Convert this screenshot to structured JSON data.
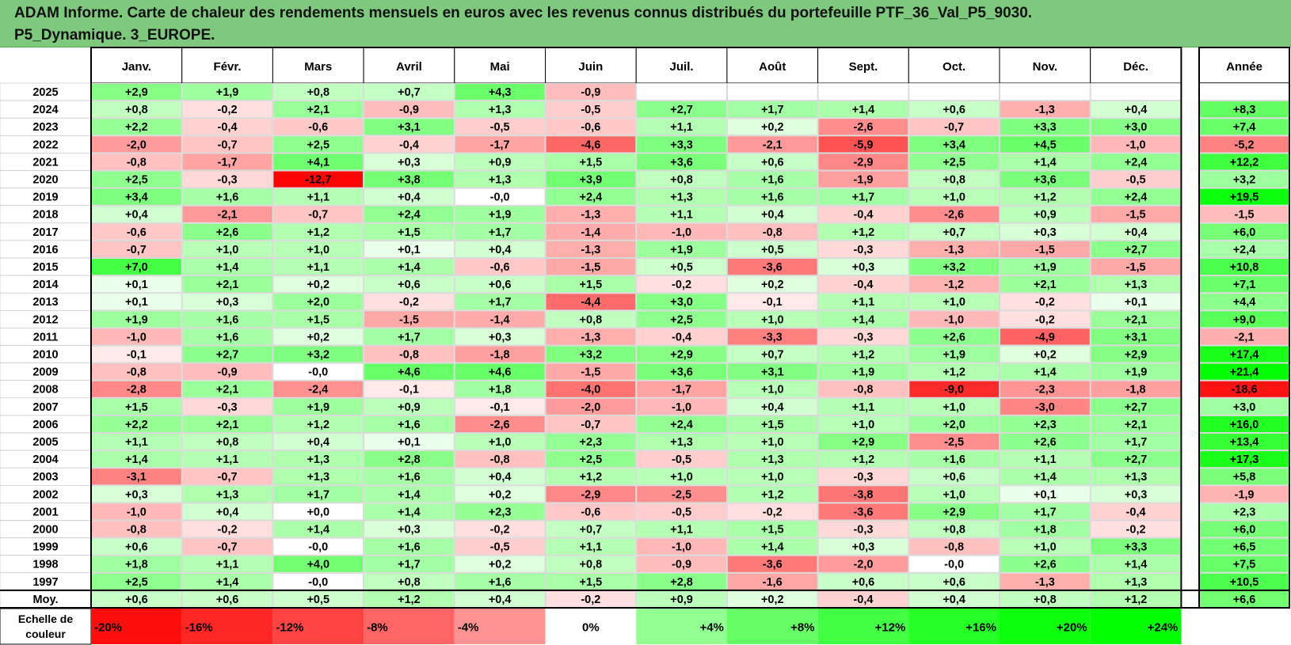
{
  "title": {
    "line1": "ADAM Informe. Carte de chaleur des rendements mensuels en euros avec les revenus connus distribués du portefeuille PTF_36_Val_P5_9030.",
    "line2": "P5_Dynamique. 3_EUROPE."
  },
  "chart_data": {
    "type": "heatmap",
    "months": [
      "Janv.",
      "Févr.",
      "Mars",
      "Avril",
      "Mai",
      "Juin",
      "Juil.",
      "Août",
      "Sept.",
      "Oct.",
      "Nov.",
      "Déc."
    ],
    "year_header": "Année",
    "rows": [
      {
        "year": "2025",
        "values": [
          "+2,9",
          "+1,9",
          "+0,8",
          "+0,7",
          "+4,3",
          "-0,9",
          "",
          "",
          "",
          "",
          "",
          ""
        ],
        "annual": ""
      },
      {
        "year": "2024",
        "values": [
          "+0,8",
          "-0,2",
          "+2,1",
          "-0,9",
          "+1,3",
          "-0,5",
          "+2,7",
          "+1,7",
          "+1,4",
          "+0,6",
          "-1,3",
          "+0,4"
        ],
        "annual": "+8,3"
      },
      {
        "year": "2023",
        "values": [
          "+2,2",
          "-0,4",
          "-0,6",
          "+3,1",
          "-0,5",
          "-0,6",
          "+1,1",
          "+0,2",
          "-2,6",
          "-0,7",
          "+3,3",
          "+3,0"
        ],
        "annual": "+7,4"
      },
      {
        "year": "2022",
        "values": [
          "-2,0",
          "-0,7",
          "+2,5",
          "-0,4",
          "-1,7",
          "-4,6",
          "+3,3",
          "-2,1",
          "-5,9",
          "+3,4",
          "+4,5",
          "-1,0"
        ],
        "annual": "-5,2"
      },
      {
        "year": "2021",
        "values": [
          "-0,8",
          "-1,7",
          "+4,1",
          "+0,3",
          "+0,9",
          "+1,5",
          "+3,6",
          "+0,6",
          "-2,9",
          "+2,5",
          "+1,4",
          "+2,4"
        ],
        "annual": "+12,2"
      },
      {
        "year": "2020",
        "values": [
          "+2,5",
          "-0,3",
          "-12,7",
          "+3,8",
          "+1,3",
          "+3,9",
          "+0,8",
          "+1,6",
          "-1,9",
          "+0,8",
          "+3,6",
          "-0,5"
        ],
        "annual": "+3,2"
      },
      {
        "year": "2019",
        "values": [
          "+3,4",
          "+1,6",
          "+1,1",
          "+0,4",
          "-0,0",
          "+2,4",
          "+1,3",
          "+1,6",
          "+1,7",
          "+1,0",
          "+1,2",
          "+2,4"
        ],
        "annual": "+19,5"
      },
      {
        "year": "2018",
        "values": [
          "+0,4",
          "-2,1",
          "-0,7",
          "+2,4",
          "+1,9",
          "-1,3",
          "+1,1",
          "+0,4",
          "-0,4",
          "-2,6",
          "+0,9",
          "-1,5"
        ],
        "annual": "-1,5"
      },
      {
        "year": "2017",
        "values": [
          "-0,6",
          "+2,6",
          "+1,2",
          "+1,5",
          "+1,7",
          "-1,4",
          "-1,0",
          "-0,8",
          "+1,2",
          "+0,7",
          "+0,3",
          "+0,4"
        ],
        "annual": "+6,0"
      },
      {
        "year": "2016",
        "values": [
          "-0,7",
          "+1,0",
          "+1,0",
          "+0,1",
          "+0,4",
          "-1,3",
          "+1,9",
          "+0,5",
          "-0,3",
          "-1,3",
          "-1,5",
          "+2,7"
        ],
        "annual": "+2,4"
      },
      {
        "year": "2015",
        "values": [
          "+7,0",
          "+1,4",
          "+1,1",
          "+1,4",
          "-0,6",
          "-1,5",
          "+0,5",
          "-3,6",
          "+0,3",
          "+3,2",
          "+1,9",
          "-1,5"
        ],
        "annual": "+10,8"
      },
      {
        "year": "2014",
        "values": [
          "+0,1",
          "+2,1",
          "+0,2",
          "+0,6",
          "+0,6",
          "+1,5",
          "-0,2",
          "+0,2",
          "-0,4",
          "-1,2",
          "+2,1",
          "+1,3"
        ],
        "annual": "+7,1"
      },
      {
        "year": "2013",
        "values": [
          "+0,1",
          "+0,3",
          "+2,0",
          "-0,2",
          "+1,7",
          "-4,4",
          "+3,0",
          "-0,1",
          "+1,1",
          "+1,0",
          "-0,2",
          "+0,1"
        ],
        "annual": "+4,4"
      },
      {
        "year": "2012",
        "values": [
          "+1,9",
          "+1,6",
          "+1,5",
          "-1,5",
          "-1,4",
          "+0,8",
          "+2,5",
          "+1,0",
          "+1,4",
          "-1,0",
          "-0,2",
          "+2,1"
        ],
        "annual": "+9,0"
      },
      {
        "year": "2011",
        "values": [
          "-1,0",
          "+1,6",
          "+0,2",
          "+1,7",
          "+0,3",
          "-1,3",
          "-0,4",
          "-3,3",
          "-0,3",
          "+2,6",
          "-4,9",
          "+3,1"
        ],
        "annual": "-2,1"
      },
      {
        "year": "2010",
        "values": [
          "-0,1",
          "+2,7",
          "+3,2",
          "-0,8",
          "-1,8",
          "+3,2",
          "+2,9",
          "+0,7",
          "+1,2",
          "+1,9",
          "+0,2",
          "+2,9"
        ],
        "annual": "+17,4"
      },
      {
        "year": "2009",
        "values": [
          "-0,8",
          "-0,9",
          "-0,0",
          "+4,6",
          "+4,6",
          "-1,5",
          "+3,6",
          "+3,1",
          "+1,9",
          "+1,2",
          "+1,4",
          "+1,9"
        ],
        "annual": "+21,4"
      },
      {
        "year": "2008",
        "values": [
          "-2,8",
          "+2,1",
          "-2,4",
          "-0,1",
          "+1,8",
          "-4,0",
          "-1,7",
          "+1,0",
          "-0,8",
          "-9,0",
          "-2,3",
          "-1,8"
        ],
        "annual": "-18,6"
      },
      {
        "year": "2007",
        "values": [
          "+1,5",
          "-0,3",
          "+1,9",
          "+0,9",
          "-0,1",
          "-2,0",
          "-1,0",
          "+0,4",
          "+1,1",
          "+1,0",
          "-3,0",
          "+2,7"
        ],
        "annual": "+3,0"
      },
      {
        "year": "2006",
        "values": [
          "+2,2",
          "+2,1",
          "+1,2",
          "+1,6",
          "-2,6",
          "-0,7",
          "+2,4",
          "+1,5",
          "+1,0",
          "+2,0",
          "+2,3",
          "+2,1"
        ],
        "annual": "+16,0"
      },
      {
        "year": "2005",
        "values": [
          "+1,1",
          "+0,8",
          "+0,4",
          "+0,1",
          "+1,0",
          "+2,3",
          "+1,3",
          "+1,0",
          "+2,9",
          "-2,5",
          "+2,6",
          "+1,7"
        ],
        "annual": "+13,4"
      },
      {
        "year": "2004",
        "values": [
          "+1,4",
          "+1,1",
          "+1,3",
          "+2,8",
          "-0,8",
          "+2,5",
          "-0,5",
          "+1,3",
          "+1,2",
          "+1,6",
          "+1,1",
          "+2,7"
        ],
        "annual": "+17,3"
      },
      {
        "year": "2003",
        "values": [
          "-3,1",
          "-0,7",
          "+1,3",
          "+1,6",
          "+0,4",
          "+1,2",
          "+1,0",
          "+1,0",
          "-0,3",
          "+0,6",
          "+1,4",
          "+1,3"
        ],
        "annual": "+5,8"
      },
      {
        "year": "2002",
        "values": [
          "+0,3",
          "+1,3",
          "+1,7",
          "+1,4",
          "+0,2",
          "-2,9",
          "-2,5",
          "+1,2",
          "-3,8",
          "+1,0",
          "+0,1",
          "+0,3"
        ],
        "annual": "-1,9"
      },
      {
        "year": "2001",
        "values": [
          "-1,0",
          "+0,4",
          "+0,0",
          "+1,4",
          "+2,3",
          "-0,6",
          "-0,5",
          "-0,2",
          "-3,6",
          "+2,9",
          "+1,7",
          "-0,4"
        ],
        "annual": "+2,3"
      },
      {
        "year": "2000",
        "values": [
          "-0,8",
          "-0,2",
          "+1,4",
          "+0,3",
          "-0,2",
          "+0,7",
          "+1,1",
          "+1,5",
          "-0,3",
          "+0,8",
          "+1,8",
          "-0,2"
        ],
        "annual": "+6,0"
      },
      {
        "year": "1999",
        "values": [
          "+0,6",
          "-0,7",
          "-0,0",
          "+1,6",
          "-0,5",
          "+1,1",
          "-1,0",
          "+1,4",
          "+0,3",
          "-0,8",
          "+1,0",
          "+3,3"
        ],
        "annual": "+6,5"
      },
      {
        "year": "1998",
        "values": [
          "+1,8",
          "+1,1",
          "+4,0",
          "+1,7",
          "+0,2",
          "+0,8",
          "-0,9",
          "-3,6",
          "-2,0",
          "-0,0",
          "+2,6",
          "+1,4"
        ],
        "annual": "+7,5"
      },
      {
        "year": "1997",
        "values": [
          "+2,5",
          "+1,4",
          "-0,0",
          "+0,8",
          "+1,6",
          "+1,5",
          "+2,8",
          "-1,6",
          "+0,6",
          "+0,6",
          "-1,3",
          "+1,3"
        ],
        "annual": "+10,5"
      }
    ],
    "average": {
      "label": "Moy.",
      "values": [
        "+0,6",
        "+0,6",
        "+0,5",
        "+1,2",
        "+0,4",
        "-0,2",
        "+0,9",
        "+0,2",
        "-0,4",
        "+0,4",
        "+0,8",
        "+1,2"
      ],
      "annual": "+6,6"
    },
    "scale": {
      "label_line1": "Echelle de",
      "label_line2": "couleur",
      "steps": [
        "-20%",
        "-16%",
        "-12%",
        "-8%",
        "-4%",
        "0%",
        "+4%",
        "+8%",
        "+12%",
        "+16%",
        "+20%",
        "+24%"
      ]
    },
    "colors": {
      "header_bg": "#7fc97f",
      "negative_max": "#ff0000",
      "positive_max": "#00ff00",
      "neutral": "#ffffff",
      "border": "#000000",
      "grid": "#d9d9d9"
    }
  }
}
